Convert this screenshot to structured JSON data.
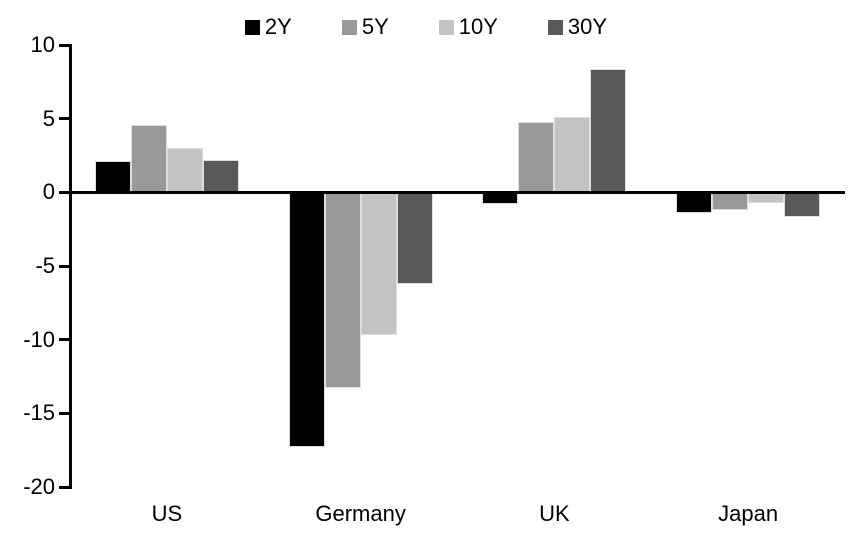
{
  "chart": {
    "background": "#ffffff",
    "axis_color": "#000000",
    "text_color": "#000000",
    "bar_edge_color": "#dddddd"
  },
  "chart_data": {
    "type": "bar",
    "title": "",
    "xlabel": "",
    "ylabel": "",
    "categories": [
      "US",
      "Germany",
      "UK",
      "Japan"
    ],
    "series": [
      {
        "name": "2Y",
        "color": "#000000",
        "values": [
          2.1,
          -17.3,
          -0.8,
          -1.4
        ]
      },
      {
        "name": "5Y",
        "color": "#999999",
        "values": [
          4.6,
          -13.3,
          4.8,
          -1.2
        ]
      },
      {
        "name": "10Y",
        "color": "#c3c3c3",
        "values": [
          3.0,
          -9.7,
          5.1,
          -0.7
        ]
      },
      {
        "name": "30Y",
        "color": "#595959",
        "values": [
          2.2,
          -6.2,
          8.4,
          -1.7
        ]
      }
    ],
    "ylim": [
      -20,
      10
    ],
    "yticks": [
      10,
      5,
      0,
      -5,
      -10,
      -15,
      -20
    ],
    "legend_position": "top-center",
    "grid": false
  }
}
